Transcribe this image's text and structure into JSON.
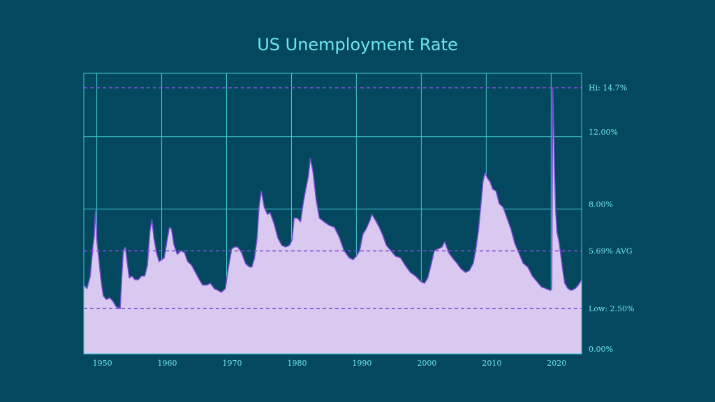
{
  "chart_data": {
    "type": "area",
    "title": "US Unemployment Rate",
    "xlabel": "",
    "ylabel": "",
    "xlim": [
      1948,
      2024.7
    ],
    "ylim": [
      0,
      15.5
    ],
    "x_ticks": [
      1950,
      1960,
      1970,
      1980,
      1990,
      2000,
      2010,
      2020
    ],
    "y_ticks": [
      {
        "value": 0,
        "label": "0.00%"
      },
      {
        "value": 8,
        "label": "8.00%"
      },
      {
        "value": 12,
        "label": "12.00%"
      }
    ],
    "reference_lines": [
      {
        "value": 14.7,
        "label": "Hi: 14.7%"
      },
      {
        "value": 5.69,
        "label": "5.69% AVG"
      },
      {
        "value": 2.5,
        "label": "Low: 2.50%"
      }
    ],
    "grid": true,
    "colors": {
      "background": "#04485f",
      "grid": "#44c7d4",
      "fill": "#d9c9f0",
      "line": "#7b4fd6",
      "reference": "#7b4fd6",
      "text": "#6ee6f0"
    },
    "x": [
      1948.0,
      1948.5,
      1949.0,
      1949.4,
      1949.6,
      1949.8,
      1950.0,
      1950.3,
      1950.6,
      1951.0,
      1951.5,
      1952.0,
      1952.5,
      1953.0,
      1953.6,
      1953.9,
      1954.1,
      1954.4,
      1954.7,
      1955.0,
      1955.4,
      1955.9,
      1956.4,
      1956.9,
      1957.4,
      1957.8,
      1958.2,
      1958.5,
      1958.8,
      1959.2,
      1959.6,
      1960.0,
      1960.4,
      1960.8,
      1961.2,
      1961.5,
      1961.9,
      1962.4,
      1963.0,
      1963.5,
      1964.0,
      1964.6,
      1965.2,
      1965.8,
      1966.3,
      1967.0,
      1967.5,
      1968.1,
      1968.7,
      1969.2,
      1969.8,
      1970.3,
      1970.8,
      1971.2,
      1971.7,
      1972.3,
      1972.9,
      1973.5,
      1973.9,
      1974.3,
      1974.7,
      1975.0,
      1975.35,
      1975.8,
      1976.3,
      1976.7,
      1977.3,
      1977.9,
      1978.5,
      1979.1,
      1979.7,
      1980.1,
      1980.4,
      1980.9,
      1981.4,
      1981.8,
      1982.2,
      1982.6,
      1982.9,
      1983.3,
      1983.8,
      1984.3,
      1985.0,
      1985.8,
      1986.6,
      1987.4,
      1988.1,
      1988.9,
      1989.5,
      1990.0,
      1990.5,
      1991.0,
      1991.5,
      1992.0,
      1992.4,
      1992.9,
      1993.5,
      1994.0,
      1994.6,
      1995.3,
      1996.0,
      1996.8,
      1997.5,
      1998.3,
      1999.1,
      1999.9,
      2000.5,
      2001.0,
      2001.5,
      2002.0,
      2002.6,
      2003.2,
      2003.6,
      2004.2,
      2004.8,
      2005.5,
      2006.1,
      2006.8,
      2007.4,
      2008.0,
      2008.4,
      2008.8,
      2009.2,
      2009.5,
      2009.8,
      2010.2,
      2010.6,
      2011.0,
      2011.5,
      2012.0,
      2012.6,
      2013.2,
      2013.8,
      2014.4,
      2015.0,
      2015.7,
      2016.4,
      2017.1,
      2017.8,
      2018.5,
      2019.2,
      2019.9,
      2020.1,
      2020.25,
      2020.35,
      2020.5,
      2020.7,
      2020.9,
      2021.2,
      2021.5,
      2021.8,
      2022.1,
      2022.6,
      2023.1,
      2023.7,
      2024.2,
      2024.7
    ],
    "values": [
      3.8,
      3.6,
      4.3,
      5.9,
      6.5,
      7.9,
      6.3,
      5.3,
      4.2,
      3.2,
      3.0,
      3.1,
      2.9,
      2.6,
      2.5,
      4.5,
      5.7,
      5.9,
      5.0,
      4.2,
      4.3,
      4.1,
      4.1,
      4.3,
      4.3,
      4.9,
      6.8,
      7.4,
      6.4,
      5.6,
      5.1,
      5.2,
      5.3,
      6.2,
      7.0,
      6.9,
      6.0,
      5.5,
      5.7,
      5.6,
      5.1,
      4.9,
      4.5,
      4.1,
      3.8,
      3.8,
      3.9,
      3.6,
      3.5,
      3.4,
      3.6,
      4.8,
      5.8,
      5.9,
      5.9,
      5.6,
      5.0,
      4.8,
      4.8,
      5.3,
      6.4,
      8.1,
      9.0,
      8.1,
      7.7,
      7.8,
      7.2,
      6.4,
      6.0,
      5.9,
      6.0,
      6.3,
      7.5,
      7.5,
      7.3,
      8.3,
      9.1,
      9.8,
      10.8,
      10.1,
      8.5,
      7.5,
      7.3,
      7.1,
      7.0,
      6.4,
      5.7,
      5.3,
      5.2,
      5.4,
      5.7,
      6.6,
      6.9,
      7.3,
      7.7,
      7.4,
      7.0,
      6.6,
      6.0,
      5.7,
      5.4,
      5.3,
      4.9,
      4.5,
      4.3,
      4.0,
      3.9,
      4.2,
      4.9,
      5.7,
      5.8,
      5.9,
      6.2,
      5.6,
      5.3,
      5.0,
      4.7,
      4.5,
      4.6,
      5.0,
      5.8,
      6.8,
      8.3,
      9.5,
      10.0,
      9.7,
      9.5,
      9.1,
      9.0,
      8.3,
      8.1,
      7.5,
      6.9,
      6.1,
      5.6,
      5.0,
      4.8,
      4.3,
      4.0,
      3.7,
      3.6,
      3.5,
      3.6,
      14.7,
      13.2,
      10.2,
      7.9,
      6.7,
      6.2,
      5.4,
      4.6,
      3.9,
      3.6,
      3.5,
      3.6,
      3.8,
      4.1
    ]
  }
}
